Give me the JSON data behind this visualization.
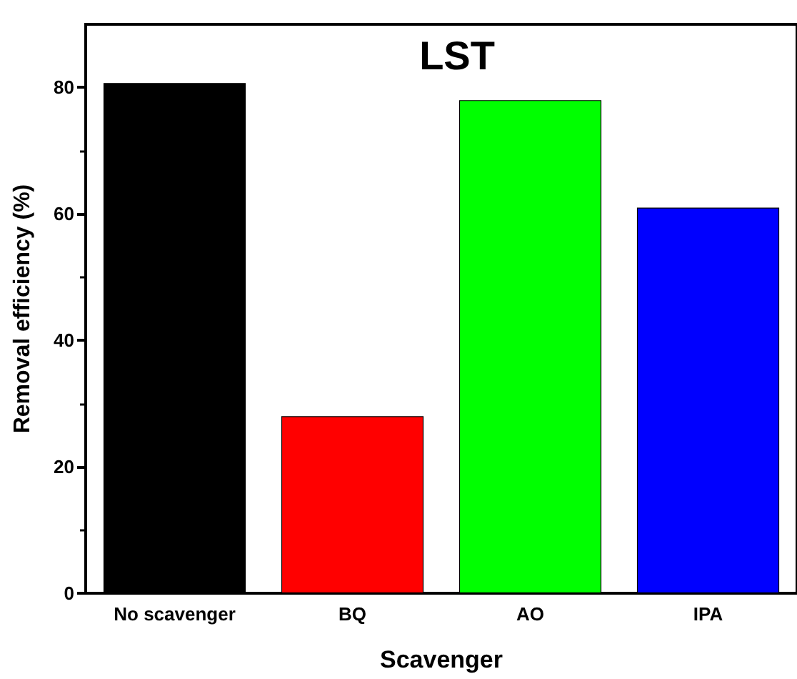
{
  "chart_data": {
    "type": "bar",
    "title": "LST",
    "xlabel": "Scavenger",
    "ylabel": "Removal efficiency (%)",
    "categories": [
      "No scavenger",
      "BQ",
      "AO",
      "IPA"
    ],
    "values": [
      80.7,
      28,
      78,
      61
    ],
    "colors": [
      "#000000",
      "#ff0000",
      "#00ff00",
      "#0000ff"
    ],
    "ylim": [
      0,
      90
    ],
    "yticks": [
      0,
      20,
      40,
      60,
      80
    ],
    "grid": false
  }
}
